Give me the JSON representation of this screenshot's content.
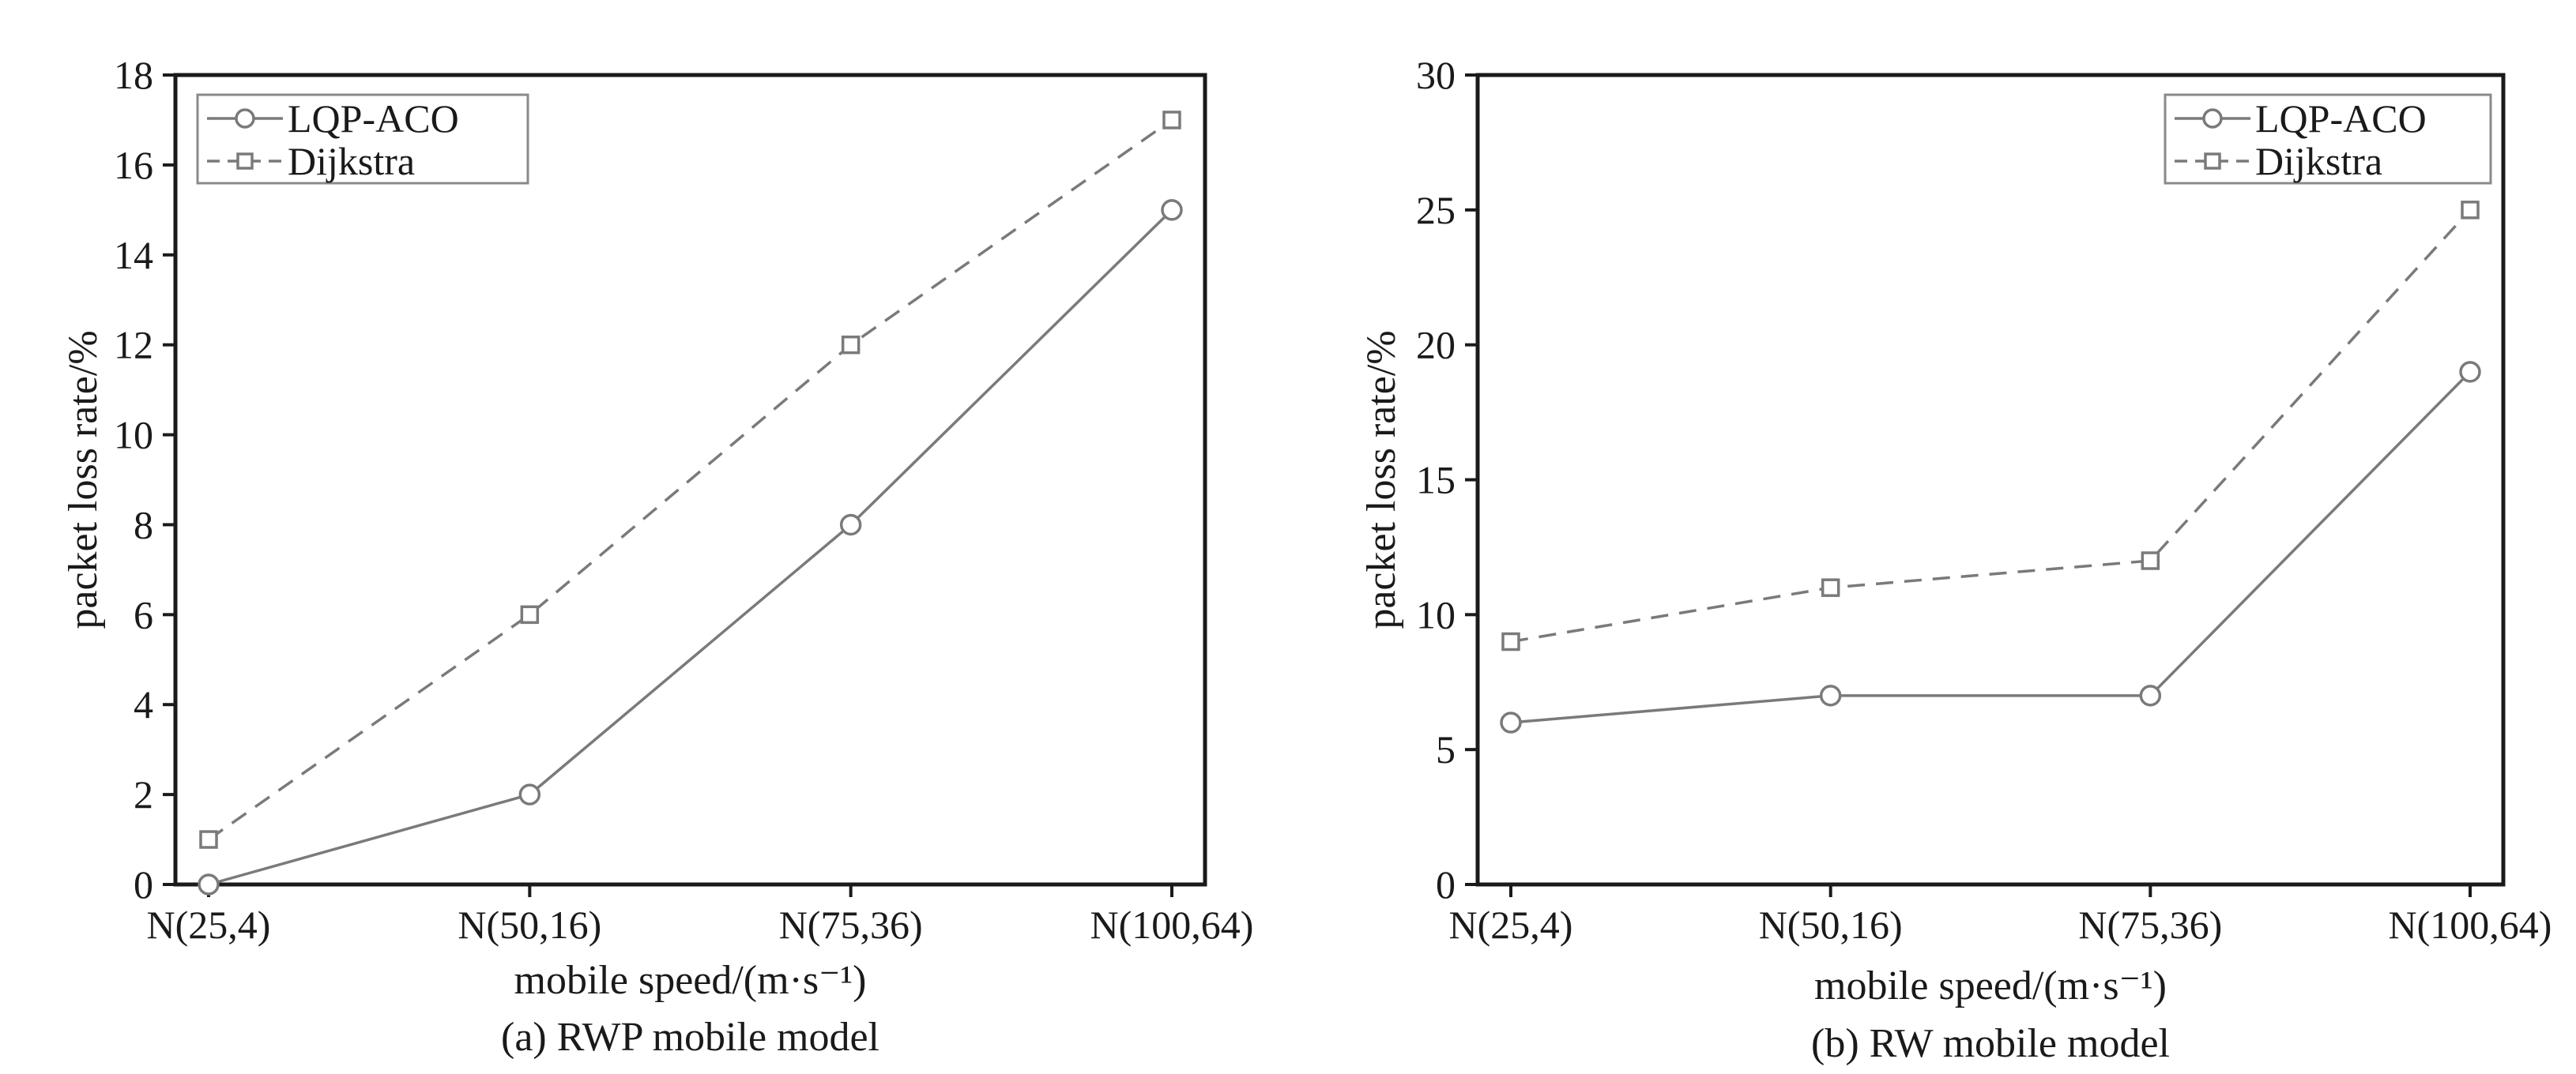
{
  "chart_data": [
    {
      "type": "line",
      "caption": "(a) RWP mobile model",
      "xlabel": "mobile speed/(m·s⁻¹)",
      "ylabel": "packet loss rate/%",
      "categories": [
        "N(25,4)",
        "N(50,16)",
        "N(75,36)",
        "N(100,64)"
      ],
      "ylim": [
        0,
        18
      ],
      "yticks": [
        0,
        2,
        4,
        6,
        8,
        10,
        12,
        14,
        16,
        18
      ],
      "legend_position": "top-left",
      "grid": false,
      "series": [
        {
          "name": "LQP-ACO",
          "values": [
            0,
            2,
            8,
            15
          ],
          "color": "#7a7a7a",
          "style": "solid",
          "marker": "circle"
        },
        {
          "name": "Dijkstra",
          "values": [
            1,
            6,
            12,
            17
          ],
          "color": "#7a7a7a",
          "style": "dashed",
          "marker": "square"
        }
      ]
    },
    {
      "type": "line",
      "caption": "(b) RW mobile model",
      "xlabel": "mobile speed/(m·s⁻¹)",
      "ylabel": "packet loss rate/%",
      "categories": [
        "N(25,4)",
        "N(50,16)",
        "N(75,36)",
        "N(100,64)"
      ],
      "ylim": [
        0,
        30
      ],
      "yticks": [
        0,
        5,
        10,
        15,
        20,
        25,
        30
      ],
      "legend_position": "top-right",
      "grid": false,
      "series": [
        {
          "name": "LQP-ACO",
          "values": [
            6,
            7,
            7,
            19
          ],
          "color": "#7a7a7a",
          "style": "solid",
          "marker": "circle"
        },
        {
          "name": "Dijkstra",
          "values": [
            9,
            11,
            12,
            25
          ],
          "color": "#7a7a7a",
          "style": "dashed",
          "marker": "square"
        }
      ]
    }
  ]
}
